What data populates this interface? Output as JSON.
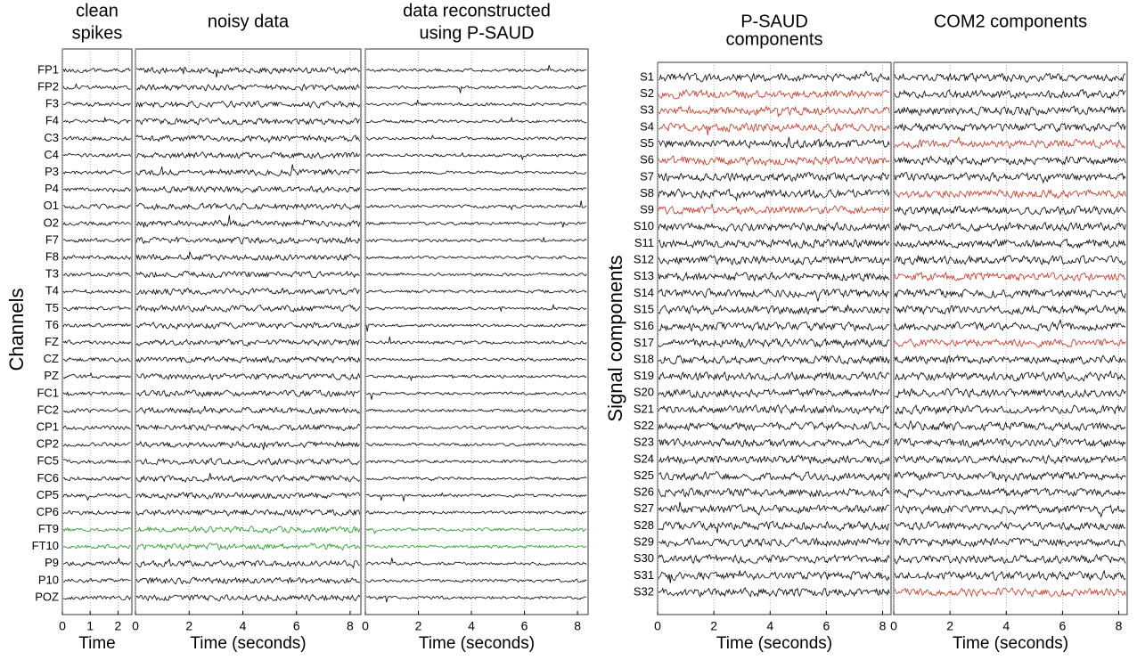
{
  "chart_data": [
    {
      "type": "traces",
      "title": [
        "clean",
        "spikes"
      ],
      "ylabel": "Channels",
      "xlabel": "Time",
      "xlim": [
        0,
        2.5
      ],
      "xticks": [
        0,
        1,
        2
      ],
      "rows": [
        "FP1",
        "FP2",
        "F3",
        "F4",
        "C3",
        "C4",
        "P3",
        "P4",
        "O1",
        "O2",
        "F7",
        "F8",
        "T3",
        "T4",
        "T5",
        "T6",
        "FZ",
        "CZ",
        "PZ",
        "FC1",
        "FC2",
        "CP1",
        "CP2",
        "FC5",
        "FC6",
        "CP5",
        "CP6",
        "FT9",
        "FT10",
        "P9",
        "P10",
        "POZ"
      ],
      "colors": [
        "#000",
        "#000",
        "#000",
        "#000",
        "#000",
        "#000",
        "#000",
        "#000",
        "#000",
        "#000",
        "#000",
        "#000",
        "#000",
        "#000",
        "#000",
        "#000",
        "#000",
        "#000",
        "#000",
        "#000",
        "#000",
        "#000",
        "#000",
        "#000",
        "#000",
        "#000",
        "#000",
        "#1a9a1a",
        "#1a9a1a",
        "#000",
        "#000",
        "#000"
      ]
    },
    {
      "type": "traces",
      "title": [
        "noisy data"
      ],
      "xlabel": "Time (seconds)",
      "xlim": [
        0,
        8.4
      ],
      "xticks": [
        0,
        2,
        4,
        6,
        8
      ],
      "colors": [
        "#000",
        "#000",
        "#000",
        "#000",
        "#000",
        "#000",
        "#000",
        "#000",
        "#000",
        "#000",
        "#000",
        "#000",
        "#000",
        "#000",
        "#000",
        "#000",
        "#000",
        "#000",
        "#000",
        "#000",
        "#000",
        "#000",
        "#000",
        "#000",
        "#000",
        "#000",
        "#000",
        "#1a9a1a",
        "#1a9a1a",
        "#000",
        "#000",
        "#000"
      ]
    },
    {
      "type": "traces",
      "title": [
        "data reconstructed",
        "using P-SAUD"
      ],
      "xlabel": "Time (seconds)",
      "xlim": [
        0,
        8.4
      ],
      "xticks": [
        0,
        2,
        4,
        6,
        8
      ],
      "colors": [
        "#000",
        "#000",
        "#000",
        "#000",
        "#000",
        "#000",
        "#000",
        "#000",
        "#000",
        "#000",
        "#000",
        "#000",
        "#000",
        "#000",
        "#000",
        "#000",
        "#000",
        "#000",
        "#000",
        "#000",
        "#000",
        "#000",
        "#000",
        "#000",
        "#000",
        "#000",
        "#000",
        "#1a9a1a",
        "#1a9a1a",
        "#000",
        "#000",
        "#000"
      ]
    },
    {
      "type": "traces",
      "title": [
        "P-SAUD",
        "components"
      ],
      "ylabel": "Signal components",
      "xlabel": "Time (seconds)",
      "xlim": [
        0,
        8.3
      ],
      "xticks": [
        0,
        2,
        4,
        6,
        8
      ],
      "rows": [
        "S1",
        "S2",
        "S3",
        "S4",
        "S5",
        "S6",
        "S7",
        "S8",
        "S9",
        "S10",
        "S11",
        "S12",
        "S13",
        "S14",
        "S15",
        "S16",
        "S17",
        "S18",
        "S19",
        "S20",
        "S21",
        "S22",
        "S23",
        "S24",
        "S25",
        "S26",
        "S27",
        "S28",
        "S29",
        "S30",
        "S31",
        "S32"
      ],
      "colors": [
        "#000",
        "#c8321e",
        "#c8321e",
        "#c8321e",
        "#000",
        "#c8321e",
        "#000",
        "#000",
        "#c8321e",
        "#000",
        "#000",
        "#000",
        "#000",
        "#000",
        "#000",
        "#000",
        "#000",
        "#000",
        "#000",
        "#000",
        "#000",
        "#000",
        "#000",
        "#000",
        "#000",
        "#000",
        "#000",
        "#000",
        "#000",
        "#000",
        "#000",
        "#000"
      ]
    },
    {
      "type": "traces",
      "title": [
        "COM2 components"
      ],
      "xlabel": "Time (seconds)",
      "xlim": [
        0,
        8.3
      ],
      "xticks": [
        0,
        2,
        4,
        6,
        8
      ],
      "colors": [
        "#000",
        "#000",
        "#000",
        "#000",
        "#c8321e",
        "#000",
        "#000",
        "#c8321e",
        "#000",
        "#000",
        "#000",
        "#000",
        "#c8321e",
        "#000",
        "#000",
        "#000",
        "#c8321e",
        "#000",
        "#000",
        "#000",
        "#000",
        "#000",
        "#000",
        "#000",
        "#000",
        "#000",
        "#000",
        "#000",
        "#000",
        "#000",
        "#000",
        "#c8321e"
      ]
    }
  ]
}
